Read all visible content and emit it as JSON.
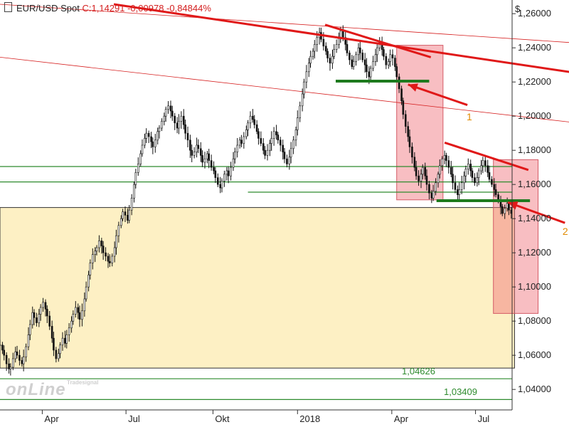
{
  "header": {
    "symbol": "EUR/USD Spot",
    "close_text": "C:1,14291 -0,00978 -0,84844%"
  },
  "currency": "$",
  "logo": {
    "main": "onLine",
    "small": "Tradesignal"
  },
  "chart_data": {
    "type": "line",
    "title": "EUR/USD Spot",
    "ylim": [
      1.028,
      1.268
    ],
    "y_ticks": [
      "1,26000",
      "1,24000",
      "1,22000",
      "1,20000",
      "1,18000",
      "1,16000",
      "1,14000",
      "1,12000",
      "1,10000",
      "1,08000",
      "1,06000",
      "1,04000"
    ],
    "y_tick_values": [
      1.26,
      1.24,
      1.22,
      1.2,
      1.18,
      1.16,
      1.14,
      1.12,
      1.1,
      1.08,
      1.06,
      1.04
    ],
    "x_ticks": [
      "Apr",
      "Jul",
      "Okt",
      "2018",
      "Apr",
      "Jul"
    ],
    "x_tick_index": [
      52,
      155,
      262,
      366,
      482,
      585
    ],
    "n_bars": 630,
    "series": [
      {
        "values": [
          1.066,
          1.063,
          1.06,
          1.055,
          1.052,
          1.053,
          1.058,
          1.062,
          1.06,
          1.057,
          1.055,
          1.059,
          1.065,
          1.072,
          1.078,
          1.085,
          1.082,
          1.079,
          1.084,
          1.088,
          1.091,
          1.087,
          1.083,
          1.077,
          1.07,
          1.063,
          1.058,
          1.061,
          1.066,
          1.07,
          1.067,
          1.072,
          1.076,
          1.08,
          1.084,
          1.088,
          1.085,
          1.081,
          1.086,
          1.093,
          1.1,
          1.107,
          1.114,
          1.119,
          1.121,
          1.123,
          1.127,
          1.124,
          1.12,
          1.118,
          1.115,
          1.114,
          1.118,
          1.123,
          1.13,
          1.136,
          1.14,
          1.144,
          1.142,
          1.139,
          1.145,
          1.152,
          1.16,
          1.167,
          1.172,
          1.178,
          1.183,
          1.187,
          1.19,
          1.188,
          1.185,
          1.182,
          1.186,
          1.191,
          1.193,
          1.197,
          1.2,
          1.204,
          1.206,
          1.203,
          1.2,
          1.196,
          1.193,
          1.197,
          1.2,
          1.195,
          1.19,
          1.186,
          1.18,
          1.177,
          1.179,
          1.183,
          1.181,
          1.177,
          1.173,
          1.175,
          1.178,
          1.174,
          1.17,
          1.168,
          1.164,
          1.16,
          1.158,
          1.162,
          1.166,
          1.168,
          1.165,
          1.17,
          1.175,
          1.179,
          1.183,
          1.186,
          1.184,
          1.188,
          1.192,
          1.196,
          1.2,
          1.198,
          1.195,
          1.191,
          1.187,
          1.184,
          1.18,
          1.177,
          1.18,
          1.184,
          1.187,
          1.191,
          1.189,
          1.186,
          1.183,
          1.179,
          1.175,
          1.172,
          1.176,
          1.181,
          1.186,
          1.192,
          1.199,
          1.206,
          1.213,
          1.22,
          1.226,
          1.231,
          1.235,
          1.238,
          1.242,
          1.246,
          1.249,
          1.245,
          1.241,
          1.238,
          1.234,
          1.231,
          1.235,
          1.239,
          1.242,
          1.246,
          1.25,
          1.246,
          1.242,
          1.237,
          1.233,
          1.229,
          1.232,
          1.236,
          1.24,
          1.237,
          1.233,
          1.23,
          1.226,
          1.223,
          1.228,
          1.232,
          1.236,
          1.24,
          1.243,
          1.239,
          1.235,
          1.23,
          1.232,
          1.236,
          1.234,
          1.229,
          1.223,
          1.216,
          1.209,
          1.201,
          1.194,
          1.188,
          1.182,
          1.176,
          1.17,
          1.165,
          1.162,
          1.166,
          1.17,
          1.165,
          1.16,
          1.155,
          1.152,
          1.156,
          1.161,
          1.166,
          1.171,
          1.175,
          1.177,
          1.174,
          1.17,
          1.166,
          1.161,
          1.157,
          1.154,
          1.157,
          1.161,
          1.165,
          1.169,
          1.172,
          1.168,
          1.164,
          1.161,
          1.164,
          1.168,
          1.171,
          1.174,
          1.171,
          1.167,
          1.163,
          1.16,
          1.157,
          1.154,
          1.151,
          1.147,
          1.143,
          1.146,
          1.149,
          1.145,
          1.143
        ]
      }
    ],
    "levels": [
      {
        "value": 1.1705,
        "color": "#2e8b2e"
      },
      {
        "value": 1.1615,
        "color": "#2e8b2e"
      },
      {
        "value": 1.1555,
        "color": "#2e8b2e",
        "from_index": 305
      },
      {
        "value": 1.04626,
        "color": "#2e8b2e",
        "label": "1,04626"
      },
      {
        "value": 1.03409,
        "color": "#2e8b2e",
        "label": "1,03409"
      }
    ],
    "range_box": {
      "start_index": 0,
      "end_index": 633,
      "top": 1.1465,
      "bottom": 1.0525,
      "color": "#fdf0c4"
    },
    "pink_boxes": [
      {
        "start_index": 488,
        "end_index": 545,
        "top": 1.2415,
        "bottom": 1.151
      },
      {
        "start_index": 607,
        "end_index": 662,
        "top": 1.1745,
        "bottom": 1.0845
      }
    ],
    "support_lines": [
      {
        "from": [
          413,
          1.2205
        ],
        "to": [
          528,
          1.2205
        ]
      },
      {
        "from": [
          537,
          1.1505
        ],
        "to": [
          652,
          1.1505
        ]
      }
    ],
    "channel_lines": [
      {
        "from": [
          0,
          1.2655
        ],
        "to": [
          720,
          1.2425
        ]
      },
      {
        "from": [
          0,
          1.2345
        ],
        "to": [
          720,
          1.1955
        ]
      }
    ],
    "red_trendlines": [
      {
        "from": [
          140,
          1.2655
        ],
        "to": [
          720,
          1.2245
        ]
      },
      {
        "from": [
          400,
          1.2535
        ],
        "to": [
          530,
          1.2345
        ]
      },
      {
        "from": [
          547,
          1.1845
        ],
        "to": [
          650,
          1.1685
        ]
      }
    ],
    "arrows": [
      {
        "from": [
          575,
          1.2065
        ],
        "to": [
          502,
          1.2185
        ],
        "label": "1",
        "label_pos": [
          574,
          1.1995
        ]
      },
      {
        "from": [
          695,
          1.1375
        ],
        "to": [
          625,
          1.1495
        ],
        "label": "2",
        "label_pos": [
          692,
          1.1325
        ]
      }
    ]
  }
}
